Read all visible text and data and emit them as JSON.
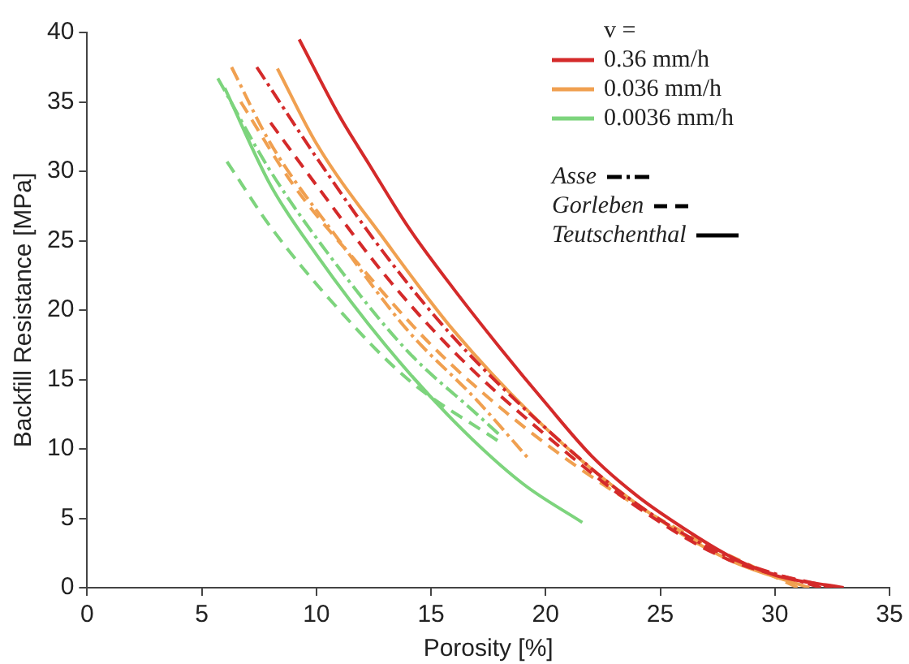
{
  "chart_data": {
    "type": "line",
    "xlabel": "Porosity [%]",
    "ylabel": "Backfill Resistance [MPa]",
    "xlim": [
      0,
      35
    ],
    "ylim": [
      0,
      40
    ],
    "xticks": [
      0,
      5,
      10,
      15,
      20,
      25,
      30,
      35
    ],
    "yticks": [
      0,
      5,
      10,
      15,
      20,
      25,
      30,
      35,
      40
    ],
    "grid": false,
    "legend": "top right",
    "legend_title": "v =",
    "marker": "none",
    "series": [
      {
        "color": "#d42a2a",
        "line_style": "solid",
        "x": [
          9.25,
          11,
          12.3,
          14,
          16,
          18,
          20,
          22,
          24,
          26,
          28,
          30,
          33
        ],
        "values": [
          39.5,
          34,
          30.5,
          26,
          21.5,
          17.3,
          13.3,
          9.5,
          6.6,
          4.3,
          2.3,
          0.9,
          0
        ]
      },
      {
        "color": "#d42a2a",
        "line_style": "dashdot",
        "x": [
          7.4,
          10,
          13,
          16,
          20,
          24,
          28,
          32
        ],
        "values": [
          37.5,
          31,
          24,
          18,
          11.5,
          6,
          2.2,
          0
        ]
      },
      {
        "color": "#d42a2a",
        "line_style": "dashed",
        "x": [
          8,
          10,
          13,
          16,
          20,
          24,
          28,
          32.5
        ],
        "values": [
          33.5,
          29,
          22.5,
          17,
          11,
          5.8,
          2,
          0
        ]
      },
      {
        "color": "#f0a050",
        "line_style": "solid",
        "x": [
          8.3,
          10,
          13,
          16,
          20,
          24,
          28,
          31.5
        ],
        "values": [
          37.4,
          32,
          25,
          18.5,
          11.5,
          6,
          2,
          0
        ]
      },
      {
        "color": "#f0a050",
        "line_style": "dashdot",
        "x": [
          6.3,
          8,
          11,
          14,
          17,
          19.2
        ],
        "values": [
          37.5,
          32,
          25,
          18.5,
          13.5,
          9.4
        ]
      },
      {
        "color": "#f0a050",
        "line_style": "dashed",
        "x": [
          6.7,
          9,
          12,
          15,
          18,
          22,
          26,
          31
        ],
        "values": [
          35,
          29,
          23,
          17.5,
          13,
          8,
          4,
          0
        ]
      },
      {
        "color": "#7dd47d",
        "line_style": "solid",
        "x": [
          6,
          8,
          10,
          13,
          16,
          19,
          21.6
        ],
        "values": [
          36,
          29,
          24,
          17.5,
          12,
          7.5,
          4.7
        ]
      },
      {
        "color": "#7dd47d",
        "line_style": "dashdot",
        "x": [
          5.7,
          8,
          11,
          14,
          17,
          18
        ],
        "values": [
          36.7,
          30,
          23,
          17,
          12.5,
          11
        ]
      },
      {
        "color": "#7dd47d",
        "line_style": "dashed",
        "x": [
          6.1,
          8,
          11,
          14,
          17.9
        ],
        "values": [
          30.7,
          26,
          20,
          15,
          10.6
        ]
      },
      {
        "name": "0.36 mm/h",
        "color": "#d42a2a",
        "line_style": "solid"
      },
      {
        "name": "0.036 mm/h",
        "color": "#f0a050",
        "line_style": "solid"
      },
      {
        "name": "0.0036 mm/h",
        "color": "#7dd47d",
        "line_style": "solid"
      },
      {
        "name": "Asse",
        "color": "#000000",
        "line_style": "dashdot"
      },
      {
        "name": "Gorleben",
        "color": "#000000",
        "line_style": "dashed"
      },
      {
        "name": "Teutschenthal",
        "color": "#000000",
        "line_style": "solid"
      }
    ]
  }
}
